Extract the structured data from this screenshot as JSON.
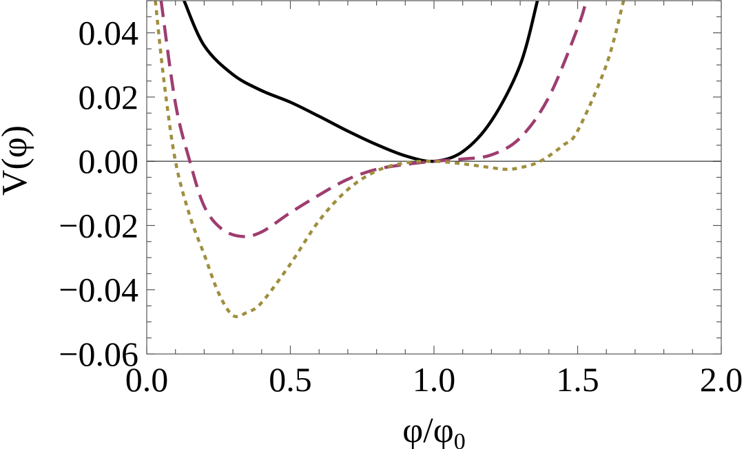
{
  "chart_data": {
    "type": "line",
    "title": "",
    "xlabel": "φ/φ",
    "xlabel_sub": "0",
    "ylabel": "V(φ)",
    "xlim": [
      0,
      2.0
    ],
    "ylim": [
      -0.06,
      0.05
    ],
    "x_ticks": [
      "0.0",
      "0.5",
      "1.0",
      "1.5",
      "2.0"
    ],
    "y_ticks": [
      "−0.06",
      "−0.04",
      "−0.02",
      "0.00",
      "0.02",
      "0.04"
    ],
    "grid": false,
    "zero_line": true,
    "series": [
      {
        "style": "solid",
        "color": "#000000",
        "x": [
          0.13,
          0.2,
          0.3,
          0.4,
          0.5,
          0.6,
          0.7,
          0.8,
          0.9,
          1.0,
          1.1,
          1.2,
          1.3,
          1.36
        ],
        "y": [
          0.05,
          0.036,
          0.027,
          0.022,
          0.0184,
          0.014,
          0.0094,
          0.0052,
          0.0017,
          0.0,
          0.003,
          0.0126,
          0.03,
          0.05
        ]
      },
      {
        "style": "dashed",
        "color": "#9e3d6f",
        "x": [
          0.05,
          0.1,
          0.15,
          0.2,
          0.26,
          0.33,
          0.4,
          0.5,
          0.6,
          0.7,
          0.8,
          0.9,
          1.0,
          1.1,
          1.2,
          1.3,
          1.4,
          1.5,
          1.53
        ],
        "y": [
          0.05,
          0.018,
          0.0,
          -0.014,
          -0.021,
          -0.0234,
          -0.022,
          -0.016,
          -0.0105,
          -0.0056,
          -0.0025,
          -0.001,
          0.0,
          0.0007,
          0.002,
          0.0073,
          0.02,
          0.0415,
          0.05
        ]
      },
      {
        "style": "dotted",
        "color": "#9f8f3e",
        "x": [
          0.03,
          0.06,
          0.1,
          0.15,
          0.2,
          0.25,
          0.3,
          0.35,
          0.4,
          0.5,
          0.6,
          0.7,
          0.8,
          0.9,
          1.0,
          1.1,
          1.2,
          1.25,
          1.3,
          1.37,
          1.45,
          1.5,
          1.6,
          1.66
        ],
        "y": [
          0.05,
          0.025,
          0.0,
          -0.017,
          -0.029,
          -0.041,
          -0.048,
          -0.047,
          -0.044,
          -0.032,
          -0.0185,
          -0.0088,
          -0.003,
          -0.0005,
          0.0,
          -0.0008,
          -0.002,
          -0.0025,
          -0.002,
          0.0,
          0.005,
          0.0095,
          0.03,
          0.05
        ]
      }
    ]
  }
}
